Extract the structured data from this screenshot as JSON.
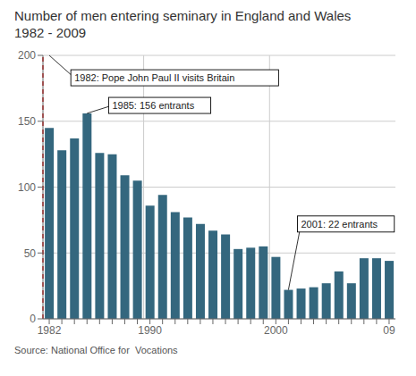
{
  "chart_data": {
    "type": "bar",
    "title": "Number of men entering seminary in England and Wales",
    "subtitle": "1982 - 2009",
    "source": "Source: National Office for  Vocations",
    "categories": [
      "1982",
      null,
      null,
      null,
      null,
      null,
      null,
      null,
      "1990",
      null,
      null,
      null,
      null,
      null,
      null,
      null,
      null,
      null,
      "2000",
      null,
      null,
      null,
      null,
      null,
      null,
      null,
      null,
      "09"
    ],
    "values": [
      145,
      128,
      137,
      156,
      126,
      125,
      109,
      105,
      86,
      94,
      81,
      77,
      72,
      67,
      64,
      53,
      54,
      55,
      47,
      22,
      23,
      24,
      27,
      36,
      27,
      46,
      46,
      44
    ],
    "color": "#34677e",
    "ylim": [
      0,
      200
    ],
    "yticks": [
      0,
      50,
      100,
      150,
      200
    ],
    "grid": true,
    "annotations": [
      {
        "text": "1982: Pope John Paul II visits Britain",
        "color": "#cc0000",
        "line_style": "dashed"
      },
      {
        "text": "1985: 156 entrants"
      },
      {
        "text": "2001: 22 entrants"
      }
    ]
  }
}
